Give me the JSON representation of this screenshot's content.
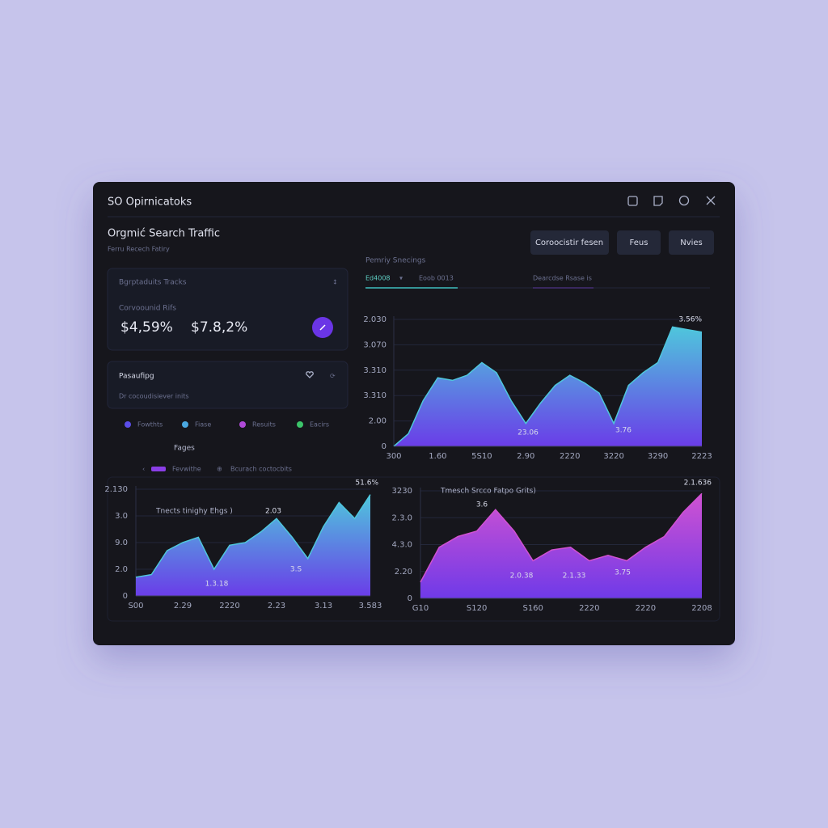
{
  "window": {
    "title": "SO Opirnicatoks"
  },
  "header": {
    "title": "Orgmić Search Traffic",
    "subtitle": "Ferru Recech Fatiry"
  },
  "buttons": [
    "Coroocistir fesen",
    "Feus",
    "Nvies"
  ],
  "card_tracks": {
    "title": "Bgrptaduits Tracks",
    "label": "Corvoounid Rifs",
    "metrics": [
      "$4,59%",
      "$7.8,2%"
    ]
  },
  "card_pasaufipg": {
    "title": "Pasaufipg",
    "text": "Dr cocoudisiever inits"
  },
  "legend": [
    {
      "name": "Fowthts",
      "color": "#5b4de8"
    },
    {
      "name": "Fiase",
      "color": "#4aa8e0"
    },
    {
      "name": "Resuits",
      "color": "#b04ad8"
    },
    {
      "name": "Eacirs",
      "color": "#3cc46a"
    }
  ],
  "pages": {
    "title": "Fages",
    "filters": [
      "Fevwithe",
      "Bcurach coctocbits"
    ]
  },
  "panel": {
    "title": "Pemriy Snecings",
    "tabs": [
      "Ed4008",
      "Eoob 0013",
      "Dearcdse Rsase is"
    ]
  },
  "chart_data": [
    {
      "type": "area",
      "colors": [
        "#4fc6dc",
        "#6a3de8"
      ],
      "categories": [
        "300",
        null,
        null,
        "1.60",
        null,
        null,
        "5S10",
        null,
        null,
        "2.90",
        null,
        null,
        "2220",
        null,
        null,
        "3220",
        null,
        null,
        "3290",
        null,
        null,
        "2223"
      ],
      "values": [
        0,
        0.5,
        1.8,
        2.7,
        2.6,
        2.8,
        3.3,
        2.9,
        1.8,
        0.9,
        1.7,
        2.4,
        2.8,
        2.5,
        2.1,
        0.9,
        2.4,
        2.9,
        3.3,
        4.7,
        4.6,
        4.5
      ],
      "ylim": [
        0,
        5
      ],
      "yticks": [
        0,
        {
          "value": 1,
          "label": "2.00"
        },
        {
          "value": 2,
          "label": "3.310"
        },
        {
          "value": 3,
          "label": "3.310"
        },
        {
          "value": 4,
          "label": "3.070"
        },
        {
          "value": 5,
          "label": "2.030"
        }
      ],
      "annotations": [
        "3.56%",
        "23.06",
        "3.76"
      ]
    },
    {
      "type": "area",
      "title": "Tnects tinighy Ehgs )",
      "colors": [
        "#4fc6dc",
        "#6a3de8"
      ],
      "categories": [
        "S00",
        null,
        null,
        "2.29",
        null,
        null,
        "2220",
        null,
        null,
        "2.23",
        null,
        null,
        "3.13",
        null,
        null,
        "3.583"
      ],
      "values": [
        0.7,
        0.8,
        1.7,
        2.0,
        2.2,
        1.0,
        1.9,
        2.0,
        2.4,
        2.9,
        2.2,
        1.4,
        2.6,
        3.5,
        2.9,
        3.8
      ],
      "ylim": [
        0,
        4
      ],
      "yticks": [
        0,
        {
          "value": 1,
          "label": "2.0"
        },
        {
          "value": 2,
          "label": "9.0"
        },
        {
          "value": 3,
          "label": "3.0"
        },
        {
          "value": 4,
          "label": "2.130"
        }
      ],
      "annotations": [
        "2.03",
        "1.3.18",
        "3.S",
        "51.6%"
      ]
    },
    {
      "type": "area",
      "title": "Tmesch Srcco Fatpo Grits)",
      "colors": [
        "#d052d2",
        "#6f3ae8"
      ],
      "categories": [
        "G10",
        null,
        null,
        "S120",
        null,
        null,
        "S160",
        null,
        null,
        "2220",
        null,
        null,
        "2220",
        null,
        null,
        "2208"
      ],
      "values": [
        0.6,
        1.9,
        2.3,
        2.5,
        3.3,
        2.5,
        1.4,
        1.8,
        1.9,
        1.4,
        1.6,
        1.4,
        1.9,
        2.3,
        3.2,
        3.9
      ],
      "ylim": [
        0,
        4
      ],
      "yticks": [
        0,
        {
          "value": 1,
          "label": "2.20"
        },
        {
          "value": 2,
          "label": "4.3.0"
        },
        {
          "value": 3,
          "label": "2.3.0"
        },
        {
          "value": 4,
          "label": "3230"
        }
      ],
      "annotations": [
        "3.6",
        "2.0.38",
        "2.1.33",
        "3.75",
        "2.1.636"
      ]
    }
  ]
}
